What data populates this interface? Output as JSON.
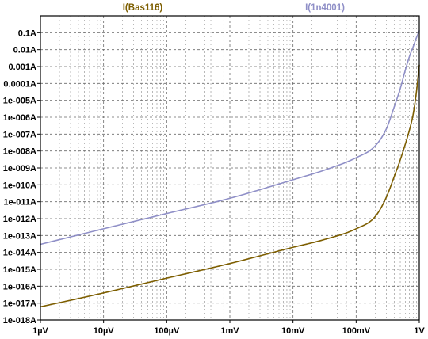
{
  "chart_data": {
    "type": "line",
    "title": "",
    "xlabel": "",
    "ylabel": "",
    "x_scale": "log",
    "y_scale": "log",
    "xlim": [
      1e-06,
      1
    ],
    "ylim": [
      1e-18,
      1
    ],
    "grid": true,
    "legend_placement": "top",
    "x_ticks": [
      {
        "value": 1e-06,
        "label": "1µV"
      },
      {
        "value": 1e-05,
        "label": "10µV"
      },
      {
        "value": 0.0001,
        "label": "100µV"
      },
      {
        "value": 0.001,
        "label": "1mV"
      },
      {
        "value": 0.01,
        "label": "10mV"
      },
      {
        "value": 0.1,
        "label": "100mV"
      },
      {
        "value": 1,
        "label": "1V"
      }
    ],
    "y_ticks": [
      {
        "value": 0.1,
        "label": "0.1A"
      },
      {
        "value": 0.01,
        "label": "0.01A"
      },
      {
        "value": 0.001,
        "label": "0.001A"
      },
      {
        "value": 0.0001,
        "label": "0.0001A"
      },
      {
        "value": 1e-05,
        "label": "1e-005A"
      },
      {
        "value": 1e-06,
        "label": "1e-006A"
      },
      {
        "value": 1e-07,
        "label": "1e-007A"
      },
      {
        "value": 1e-08,
        "label": "1e-008A"
      },
      {
        "value": 1e-09,
        "label": "1e-009A"
      },
      {
        "value": 1e-10,
        "label": "1e-010A"
      },
      {
        "value": 1e-11,
        "label": "1e-011A"
      },
      {
        "value": 1e-12,
        "label": "1e-012A"
      },
      {
        "value": 1e-13,
        "label": "1e-013A"
      },
      {
        "value": 1e-14,
        "label": "1e-014A"
      },
      {
        "value": 1e-15,
        "label": "1e-015A"
      },
      {
        "value": 1e-16,
        "label": "1e-016A"
      },
      {
        "value": 1e-17,
        "label": "1e-017A"
      },
      {
        "value": 1e-18,
        "label": "1e-018A"
      }
    ],
    "series": [
      {
        "name": "I(Bas116)",
        "color": "#7d5e00",
        "points": [
          [
            1e-06,
            6e-18
          ],
          [
            1e-05,
            4e-17
          ],
          [
            0.0001,
            3e-16
          ],
          [
            0.001,
            2.2e-15
          ],
          [
            0.01,
            2e-14
          ],
          [
            0.03,
            5.5e-14
          ],
          [
            0.1,
            2.5e-13
          ],
          [
            0.2,
            1.3e-12
          ],
          [
            0.3,
            1.8e-11
          ],
          [
            0.4,
            3e-10
          ],
          [
            0.5,
            3e-09
          ],
          [
            0.6,
            2.5e-08
          ],
          [
            0.7,
            1.8e-07
          ],
          [
            0.8,
            1.5e-06
          ],
          [
            0.9,
            3e-05
          ],
          [
            1,
            0.0012
          ]
        ]
      },
      {
        "name": "I(1n4001)",
        "color": "#8f8fc7",
        "points": [
          [
            1e-06,
            3e-14
          ],
          [
            1e-05,
            2.5e-13
          ],
          [
            0.0001,
            2e-12
          ],
          [
            0.001,
            1.6e-11
          ],
          [
            0.01,
            2e-10
          ],
          [
            0.03,
            7e-10
          ],
          [
            0.1,
            4e-09
          ],
          [
            0.2,
            2e-08
          ],
          [
            0.3,
            2e-07
          ],
          [
            0.4,
            4e-06
          ],
          [
            0.5,
            5e-05
          ],
          [
            0.6,
            0.0006
          ],
          [
            0.7,
            0.004
          ],
          [
            0.8,
            0.015
          ],
          [
            0.9,
            0.05
          ],
          [
            1,
            0.13
          ]
        ]
      }
    ]
  }
}
